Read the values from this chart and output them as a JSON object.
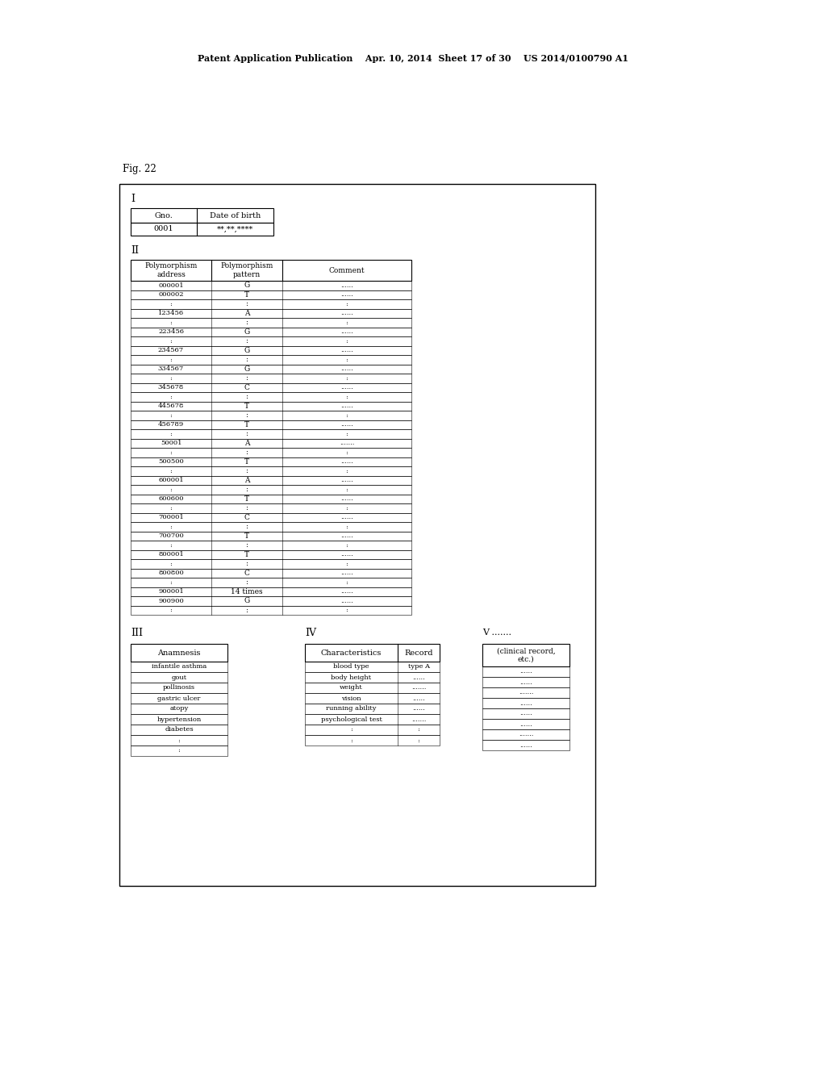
{
  "header_text": "Patent Application Publication    Apr. 10, 2014  Sheet 17 of 30    US 2014/0100790 A1",
  "fig_label": "Fig. 22",
  "background_color": "#ffffff",
  "section_I": {
    "label": "I",
    "table_headers": [
      "Gno.",
      "Date of birth"
    ],
    "table_data": [
      [
        "0001",
        "**,**,****"
      ]
    ]
  },
  "section_II": {
    "label": "II",
    "table_headers": [
      "Polymorphism\naddress",
      "Polymorphism\npattern",
      "Comment"
    ],
    "table_data": [
      [
        "000001",
        "G",
        "......"
      ],
      [
        "000002",
        "T",
        "......"
      ],
      [
        ":",
        ":",
        ":"
      ],
      [
        "123456",
        "A",
        "......"
      ],
      [
        ":",
        ":",
        ":"
      ],
      [
        "223456",
        "G",
        "......"
      ],
      [
        ":",
        ":",
        ":"
      ],
      [
        "234567",
        "G",
        "......"
      ],
      [
        ":",
        ":",
        ":"
      ],
      [
        "334567",
        "G",
        "......"
      ],
      [
        ":",
        ":",
        ":"
      ],
      [
        "345678",
        "C",
        "......"
      ],
      [
        ":",
        ":",
        ":"
      ],
      [
        "445678",
        "T",
        "......"
      ],
      [
        ":",
        ":",
        ":"
      ],
      [
        "456789",
        "T",
        "......"
      ],
      [
        ":",
        ":",
        ":"
      ],
      [
        "50001",
        "A",
        "......."
      ],
      [
        ":",
        ":",
        ":"
      ],
      [
        "500500",
        "T",
        "......"
      ],
      [
        ":",
        ":",
        ":"
      ],
      [
        "600001",
        "A",
        "......"
      ],
      [
        ":",
        ":",
        ":"
      ],
      [
        "600600",
        "T",
        "......"
      ],
      [
        ":",
        ":",
        ":"
      ],
      [
        "700001",
        "C",
        "......"
      ],
      [
        ":",
        ":",
        ":"
      ],
      [
        "700700",
        "T",
        "......"
      ],
      [
        ":",
        ":",
        ":"
      ],
      [
        "800001",
        "T",
        "......"
      ],
      [
        ":",
        ":",
        ":"
      ],
      [
        "800800",
        "C",
        "......"
      ],
      [
        ":",
        ":",
        ":"
      ],
      [
        "900001",
        "14 times",
        "......"
      ],
      [
        "900900",
        "G",
        "......"
      ],
      [
        ":",
        ":",
        ":"
      ]
    ]
  },
  "section_III": {
    "label": "III",
    "header": "Anamnesis",
    "data": [
      "infantile asthma",
      "gout",
      "pollinosis",
      "gastric ulcer",
      "atopy",
      "hypertension",
      "diabetes",
      ":",
      ":"
    ]
  },
  "section_IV": {
    "label": "IV",
    "col_headers": [
      "Characteristics",
      "Record"
    ],
    "data": [
      [
        "blood type",
        "type A"
      ],
      [
        "body height",
        "......"
      ],
      [
        "weight",
        "......."
      ],
      [
        "vision",
        "......"
      ],
      [
        "running ability",
        "......"
      ],
      [
        "psychological test",
        "......."
      ],
      [
        ":",
        ":"
      ],
      [
        ":",
        ":"
      ]
    ]
  },
  "section_V": {
    "label": "V .......",
    "header": "(clinical record,\netc.)",
    "data": [
      "......",
      "......",
      ".......",
      "......",
      "......",
      "......",
      ".......",
      "......"
    ]
  }
}
